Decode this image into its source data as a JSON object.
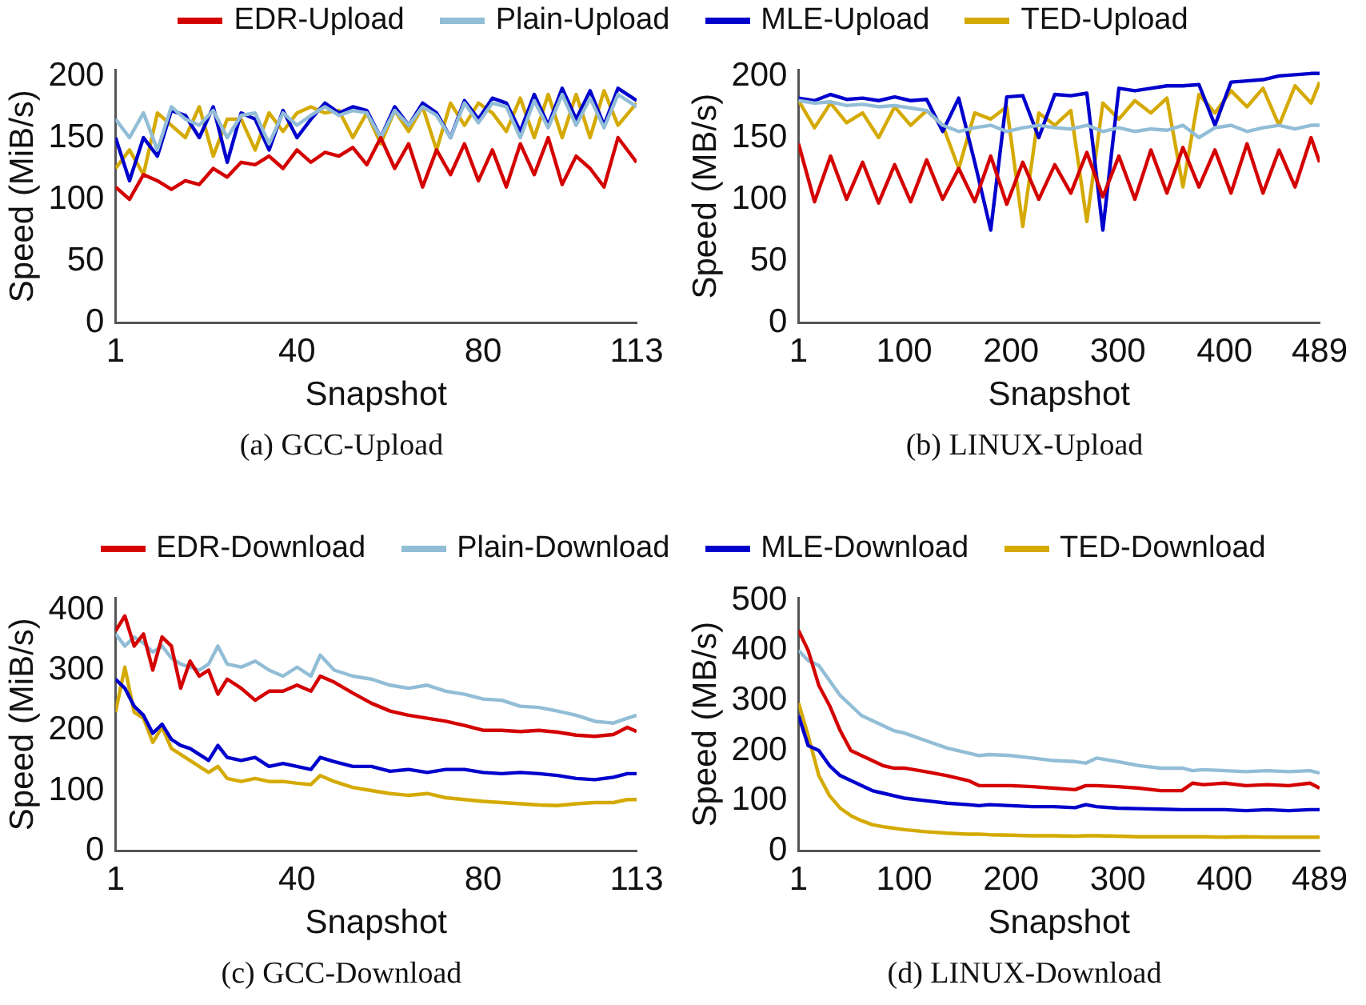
{
  "chart_data": [
    {
      "type": "line",
      "title": "(a) GCC-Upload",
      "xlabel": "Snapshot",
      "ylabel": "Speed (MiB/s)",
      "legend": "top",
      "xlim": [
        1,
        113
      ],
      "xticks": [
        1,
        40,
        80,
        113
      ],
      "ylim": [
        0,
        205
      ],
      "yticks": [
        0,
        50,
        100,
        150,
        200
      ],
      "x": [
        1,
        4,
        7,
        10,
        13,
        16,
        19,
        22,
        25,
        28,
        31,
        34,
        37,
        40,
        43,
        46,
        49,
        52,
        55,
        58,
        61,
        64,
        67,
        70,
        73,
        76,
        79,
        82,
        85,
        88,
        91,
        94,
        97,
        100,
        103,
        106,
        109,
        113
      ],
      "series": [
        {
          "name": "EDR-Upload",
          "color": "#d40000",
          "values": [
            110,
            100,
            120,
            115,
            108,
            115,
            112,
            125,
            118,
            130,
            128,
            135,
            125,
            140,
            130,
            138,
            135,
            142,
            128,
            150,
            125,
            145,
            110,
            140,
            120,
            145,
            115,
            140,
            110,
            145,
            120,
            150,
            112,
            135,
            125,
            110,
            150,
            130
          ]
        },
        {
          "name": "Plain-Upload",
          "color": "#92bdd6",
          "values": [
            165,
            150,
            170,
            140,
            175,
            165,
            160,
            172,
            150,
            168,
            170,
            145,
            170,
            160,
            168,
            175,
            168,
            172,
            170,
            150,
            172,
            160,
            175,
            168,
            150,
            178,
            162,
            178,
            175,
            150,
            180,
            158,
            185,
            160,
            182,
            158,
            185,
            175
          ]
        },
        {
          "name": "MLE-Upload",
          "color": "#0000cc",
          "values": [
            150,
            115,
            150,
            135,
            172,
            168,
            150,
            175,
            130,
            170,
            165,
            140,
            172,
            150,
            165,
            178,
            170,
            175,
            172,
            150,
            175,
            160,
            178,
            170,
            150,
            180,
            165,
            182,
            178,
            155,
            185,
            160,
            190,
            165,
            188,
            160,
            190,
            180
          ]
        },
        {
          "name": "TED-Upload",
          "color": "#d4aa00",
          "values": [
            125,
            140,
            120,
            170,
            160,
            150,
            175,
            135,
            165,
            165,
            140,
            170,
            155,
            170,
            175,
            170,
            172,
            150,
            170,
            145,
            172,
            155,
            175,
            140,
            178,
            160,
            178,
            170,
            155,
            182,
            150,
            185,
            150,
            185,
            150,
            188,
            160,
            178
          ]
        }
      ]
    },
    {
      "type": "line",
      "title": "(b) LINUX-Upload",
      "xlabel": "Snapshot",
      "ylabel": "Speed (MB/s)",
      "xlim": [
        1,
        489
      ],
      "xticks": [
        1,
        100,
        200,
        300,
        400,
        489
      ],
      "ylim": [
        0,
        205
      ],
      "yticks": [
        0,
        50,
        100,
        150,
        200
      ],
      "x": [
        1,
        16,
        31,
        46,
        61,
        76,
        91,
        106,
        121,
        136,
        151,
        166,
        181,
        196,
        211,
        226,
        241,
        256,
        271,
        286,
        301,
        316,
        331,
        346,
        361,
        376,
        391,
        406,
        421,
        436,
        451,
        466,
        481,
        489
      ],
      "series": [
        {
          "color": "#d40000",
          "values": [
            145,
            98,
            135,
            100,
            130,
            97,
            128,
            98,
            132,
            100,
            125,
            98,
            135,
            96,
            130,
            100,
            128,
            105,
            138,
            102,
            135,
            100,
            140,
            105,
            142,
            110,
            140,
            105,
            145,
            105,
            140,
            110,
            150,
            130
          ]
        },
        {
          "color": "#92bdd6",
          "values": [
            180,
            178,
            179,
            176,
            177,
            175,
            176,
            174,
            172,
            160,
            155,
            158,
            160,
            155,
            158,
            160,
            158,
            157,
            160,
            155,
            158,
            155,
            157,
            156,
            160,
            150,
            158,
            160,
            155,
            158,
            160,
            157,
            160,
            160
          ]
        },
        {
          "color": "#0000cc",
          "values": [
            182,
            180,
            185,
            181,
            182,
            180,
            183,
            180,
            181,
            155,
            182,
            130,
            75,
            183,
            184,
            150,
            185,
            184,
            186,
            75,
            190,
            188,
            190,
            192,
            192,
            193,
            160,
            195,
            196,
            197,
            200,
            201,
            202,
            202
          ]
        },
        {
          "color": "#d4aa00",
          "values": [
            180,
            158,
            178,
            162,
            170,
            150,
            175,
            160,
            172,
            160,
            125,
            170,
            165,
            175,
            78,
            170,
            160,
            172,
            82,
            178,
            165,
            180,
            170,
            182,
            110,
            185,
            170,
            188,
            175,
            190,
            160,
            192,
            178,
            195
          ]
        }
      ]
    },
    {
      "type": "line",
      "title": "(c) GCC-Download",
      "xlabel": "Snapshot",
      "ylabel": "Speed (MiB/s)",
      "legend": "top",
      "xlim": [
        1,
        113
      ],
      "xticks": [
        1,
        40,
        80,
        113
      ],
      "ylim": [
        0,
        420
      ],
      "yticks": [
        0,
        100,
        200,
        300,
        400
      ],
      "x": [
        1,
        3,
        5,
        7,
        9,
        11,
        13,
        15,
        17,
        19,
        21,
        23,
        25,
        28,
        31,
        34,
        37,
        40,
        43,
        45,
        48,
        52,
        56,
        60,
        64,
        68,
        72,
        76,
        80,
        84,
        88,
        92,
        96,
        100,
        104,
        108,
        111,
        113
      ],
      "series": [
        {
          "name": "EDR-Download",
          "color": "#d40000",
          "values": [
            365,
            390,
            340,
            360,
            300,
            355,
            340,
            270,
            315,
            290,
            300,
            260,
            285,
            270,
            250,
            265,
            265,
            275,
            265,
            290,
            280,
            262,
            245,
            232,
            225,
            220,
            215,
            208,
            200,
            200,
            198,
            200,
            197,
            192,
            190,
            193,
            205,
            198
          ]
        },
        {
          "name": "Plain-Download",
          "color": "#92bdd6",
          "values": [
            360,
            340,
            355,
            345,
            330,
            340,
            320,
            310,
            305,
            300,
            310,
            340,
            310,
            305,
            315,
            300,
            290,
            305,
            290,
            325,
            300,
            290,
            285,
            275,
            270,
            275,
            265,
            260,
            252,
            250,
            240,
            238,
            232,
            225,
            215,
            212,
            220,
            225
          ]
        },
        {
          "name": "MLE-Download",
          "color": "#0000cc",
          "values": [
            285,
            270,
            240,
            225,
            195,
            210,
            185,
            175,
            170,
            160,
            150,
            175,
            155,
            150,
            155,
            140,
            145,
            140,
            135,
            155,
            148,
            140,
            140,
            132,
            135,
            130,
            135,
            135,
            130,
            128,
            130,
            128,
            125,
            120,
            118,
            122,
            128,
            128
          ]
        },
        {
          "name": "TED-Download",
          "color": "#d4aa00",
          "values": [
            230,
            305,
            230,
            220,
            180,
            205,
            170,
            160,
            150,
            140,
            130,
            140,
            120,
            115,
            120,
            115,
            115,
            112,
            110,
            125,
            115,
            105,
            100,
            95,
            92,
            95,
            88,
            85,
            82,
            80,
            78,
            76,
            75,
            78,
            80,
            80,
            85,
            85
          ]
        }
      ]
    },
    {
      "type": "line",
      "title": "(d) LINUX-Download",
      "xlabel": "Snapshot",
      "ylabel": "Speed (MB/s)",
      "xlim": [
        1,
        489
      ],
      "xticks": [
        1,
        100,
        200,
        300,
        400,
        489
      ],
      "ylim": [
        0,
        505
      ],
      "yticks": [
        0,
        100,
        200,
        300,
        400,
        500
      ],
      "x": [
        1,
        10,
        20,
        30,
        40,
        50,
        60,
        70,
        80,
        90,
        100,
        120,
        140,
        160,
        170,
        180,
        200,
        220,
        240,
        260,
        270,
        280,
        300,
        320,
        340,
        360,
        370,
        380,
        400,
        420,
        440,
        460,
        480,
        489
      ],
      "series": [
        {
          "color": "#d40000",
          "values": [
            440,
            400,
            330,
            290,
            240,
            200,
            190,
            180,
            170,
            165,
            165,
            158,
            150,
            140,
            130,
            130,
            130,
            128,
            125,
            122,
            130,
            130,
            128,
            125,
            120,
            120,
            135,
            132,
            135,
            130,
            132,
            130,
            135,
            125
          ]
        },
        {
          "color": "#92bdd6",
          "values": [
            400,
            380,
            370,
            340,
            310,
            290,
            270,
            260,
            250,
            240,
            235,
            220,
            205,
            195,
            190,
            192,
            190,
            185,
            180,
            178,
            175,
            185,
            178,
            170,
            165,
            165,
            160,
            162,
            160,
            158,
            160,
            158,
            160,
            155
          ]
        },
        {
          "color": "#0000cc",
          "values": [
            270,
            210,
            200,
            170,
            150,
            140,
            130,
            120,
            115,
            110,
            105,
            100,
            95,
            92,
            90,
            92,
            90,
            88,
            88,
            86,
            92,
            88,
            85,
            84,
            83,
            82,
            82,
            82,
            82,
            80,
            82,
            80,
            82,
            82
          ]
        },
        {
          "color": "#d4aa00",
          "values": [
            295,
            230,
            150,
            110,
            85,
            70,
            60,
            52,
            48,
            45,
            42,
            38,
            35,
            33,
            33,
            32,
            31,
            30,
            30,
            29,
            30,
            30,
            29,
            28,
            28,
            28,
            28,
            28,
            27,
            28,
            27,
            27,
            27,
            27
          ]
        }
      ]
    }
  ]
}
